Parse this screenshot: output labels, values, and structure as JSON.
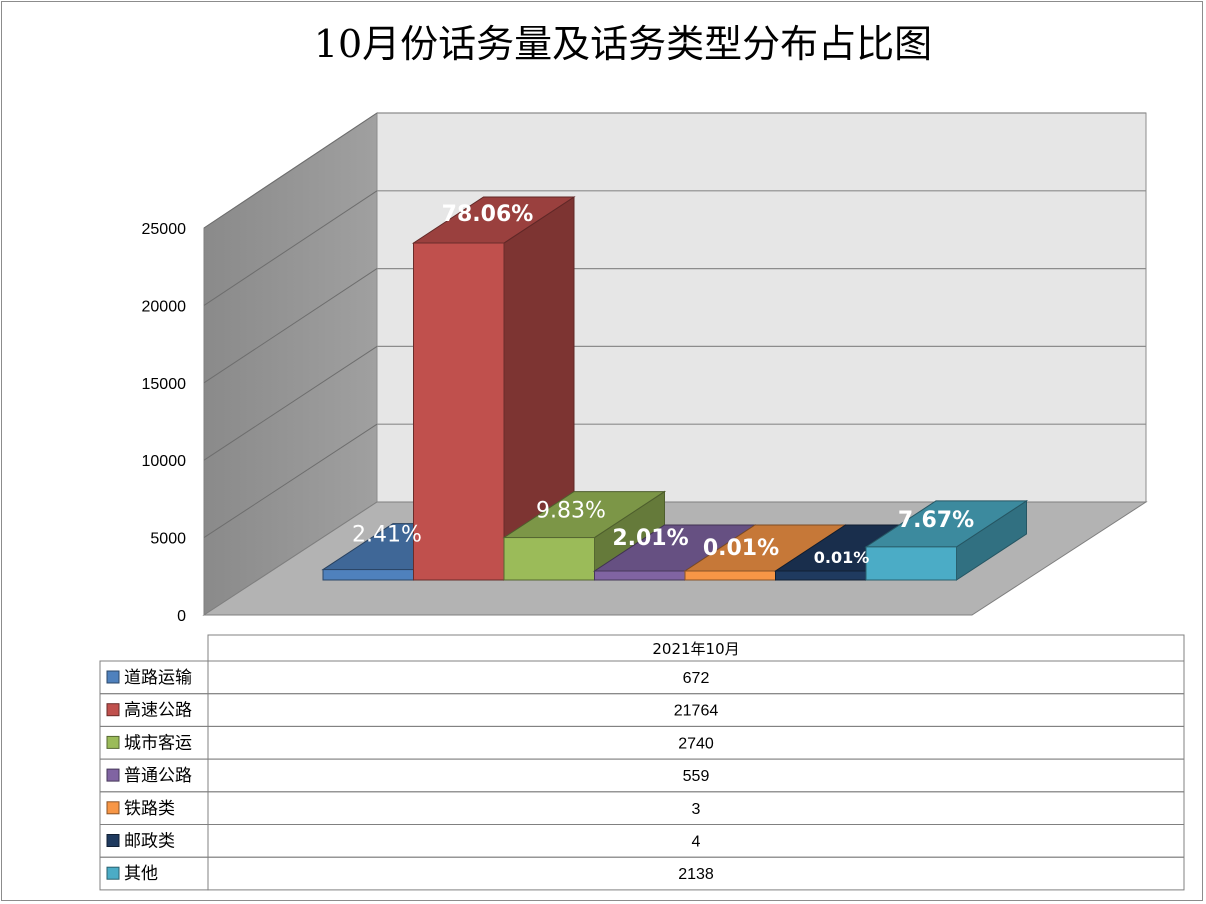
{
  "chart_data": {
    "type": "bar",
    "title": "10月份话务量及话务类型分布占比图",
    "period": "2021年10月",
    "ylim": [
      0,
      25000
    ],
    "yticks": [
      0,
      5000,
      10000,
      15000,
      20000,
      25000
    ],
    "grid": true,
    "legend": "table-left",
    "categories": [
      "道路运输",
      "高速公路",
      "城市客运",
      "普通公路",
      "铁路类",
      "邮政类",
      "其他"
    ],
    "values": [
      672,
      21764,
      2740,
      559,
      3,
      4,
      2138
    ],
    "data_labels": [
      "2.41%",
      "78.06%",
      "9.83%",
      "2.01%",
      "0.01%",
      "0.01%",
      "7.67%"
    ],
    "colors": [
      "#4f81bd",
      "#c0504d",
      "#9bbb59",
      "#8064a2",
      "#f79646",
      "#1f3a5f",
      "#4bacc6"
    ]
  }
}
